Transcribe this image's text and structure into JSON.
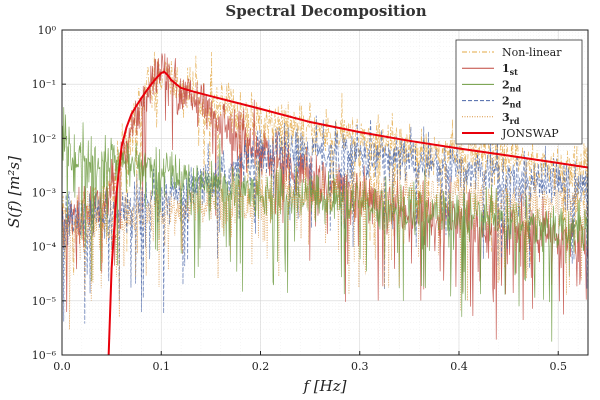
{
  "chart_data": {
    "type": "line",
    "title": "Spectral Decomposition",
    "xlabel": "f [Hz]",
    "ylabel": "S(f) [m²s]",
    "xlim": [
      0.0,
      0.53
    ],
    "ylim": [
      1e-06,
      1
    ],
    "yscale": "log",
    "grid": true,
    "legend_position": "top-right",
    "x_ticks": [
      "0.0",
      "0.1",
      "0.2",
      "0.3",
      "0.4",
      "0.5"
    ],
    "x_tick_values": [
      0.0,
      0.1,
      0.2,
      0.3,
      0.4,
      0.5
    ],
    "y_ticks": [
      "10⁻⁶",
      "10⁻⁵",
      "10⁻⁴",
      "10⁻³",
      "10⁻²",
      "10⁻¹",
      "10⁰"
    ],
    "y_tick_values": [
      1e-06,
      1e-05,
      0.0001,
      0.001,
      0.01,
      0.1,
      1
    ],
    "series": [
      {
        "name": "Non-linear",
        "color": "#e3a845",
        "style": "dashdot",
        "noisy": true,
        "x": [
          0.0,
          0.02,
          0.04,
          0.055,
          0.065,
          0.075,
          0.085,
          0.095,
          0.1,
          0.105,
          0.12,
          0.14,
          0.16,
          0.2,
          0.25,
          0.3,
          0.35,
          0.4,
          0.45,
          0.5,
          0.53
        ],
        "y": [
          0.0004,
          0.0005,
          0.0006,
          0.002,
          0.008,
          0.03,
          0.07,
          0.12,
          0.16,
          0.14,
          0.08,
          0.06,
          0.04,
          0.02,
          0.014,
          0.01,
          0.007,
          0.005,
          0.004,
          0.003,
          0.0025
        ]
      },
      {
        "name": "1st",
        "color": "#c0473d",
        "style": "solid",
        "noisy": true,
        "x": [
          0.0,
          0.02,
          0.04,
          0.055,
          0.065,
          0.075,
          0.085,
          0.095,
          0.1,
          0.105,
          0.12,
          0.14,
          0.16,
          0.18,
          0.2,
          0.23,
          0.26,
          0.3,
          0.35,
          0.4,
          0.45,
          0.5,
          0.53
        ],
        "y": [
          0.0003,
          0.0004,
          0.0006,
          0.002,
          0.008,
          0.03,
          0.07,
          0.12,
          0.17,
          0.15,
          0.07,
          0.04,
          0.02,
          0.012,
          0.006,
          0.003,
          0.0015,
          0.0008,
          0.0004,
          0.0003,
          0.0002,
          0.00015,
          0.0001
        ]
      },
      {
        "name": "2nd",
        "color": "#6b9a3e",
        "style": "solid",
        "noisy": true,
        "x": [
          0.0,
          0.005,
          0.01,
          0.02,
          0.04,
          0.06,
          0.08,
          0.1,
          0.12,
          0.15,
          0.2,
          0.25,
          0.3,
          0.35,
          0.4,
          0.45,
          0.5,
          0.53
        ],
        "y": [
          0.003,
          0.01,
          0.005,
          0.004,
          0.004,
          0.0035,
          0.003,
          0.0025,
          0.002,
          0.0015,
          0.001,
          0.0008,
          0.0006,
          0.0005,
          0.0004,
          0.0003,
          0.00025,
          0.0002
        ]
      },
      {
        "name": "2nd",
        "color": "#4a66a8",
        "style": "dashed",
        "noisy": true,
        "x": [
          0.0,
          0.05,
          0.1,
          0.15,
          0.18,
          0.2,
          0.22,
          0.25,
          0.28,
          0.3,
          0.35,
          0.4,
          0.45,
          0.5,
          0.53
        ],
        "y": [
          0.0003,
          0.0004,
          0.0006,
          0.0015,
          0.003,
          0.005,
          0.006,
          0.006,
          0.005,
          0.005,
          0.004,
          0.003,
          0.002,
          0.0015,
          0.0012
        ]
      },
      {
        "name": "3rd",
        "color": "#d9913c",
        "style": "dotted",
        "noisy": true,
        "x": [
          0.0,
          0.05,
          0.1,
          0.15,
          0.2,
          0.25,
          0.3,
          0.35,
          0.4,
          0.45,
          0.5,
          0.53
        ],
        "y": [
          0.0002,
          0.0003,
          0.0004,
          0.0006,
          0.0008,
          0.001,
          0.001,
          0.0009,
          0.0008,
          0.0007,
          0.0006,
          0.0005
        ]
      },
      {
        "name": "JONSWAP",
        "color": "#e8000b",
        "style": "solid",
        "noisy": false,
        "x": [
          0.047,
          0.05,
          0.055,
          0.06,
          0.065,
          0.07,
          0.075,
          0.08,
          0.085,
          0.09,
          0.095,
          0.1,
          0.103,
          0.106,
          0.11,
          0.115,
          0.12,
          0.13,
          0.15,
          0.2,
          0.25,
          0.3,
          0.35,
          0.4,
          0.45,
          0.5,
          0.53
        ],
        "y": [
          1e-06,
          4e-05,
          0.001,
          0.007,
          0.016,
          0.028,
          0.04,
          0.055,
          0.075,
          0.1,
          0.13,
          0.16,
          0.17,
          0.15,
          0.12,
          0.1,
          0.085,
          0.075,
          0.06,
          0.035,
          0.02,
          0.013,
          0.009,
          0.0065,
          0.0048,
          0.0035,
          0.0029
        ]
      }
    ],
    "legend": [
      {
        "base": "Non-linear",
        "sub": "",
        "bold": false
      },
      {
        "base": "1",
        "sub": "st",
        "bold": true
      },
      {
        "base": "2",
        "sub": "nd",
        "bold": true
      },
      {
        "base": "2",
        "sub": "nd",
        "bold": true
      },
      {
        "base": "3",
        "sub": "rd",
        "bold": true
      },
      {
        "base": "JONSWAP",
        "sub": "",
        "bold": false
      }
    ]
  }
}
